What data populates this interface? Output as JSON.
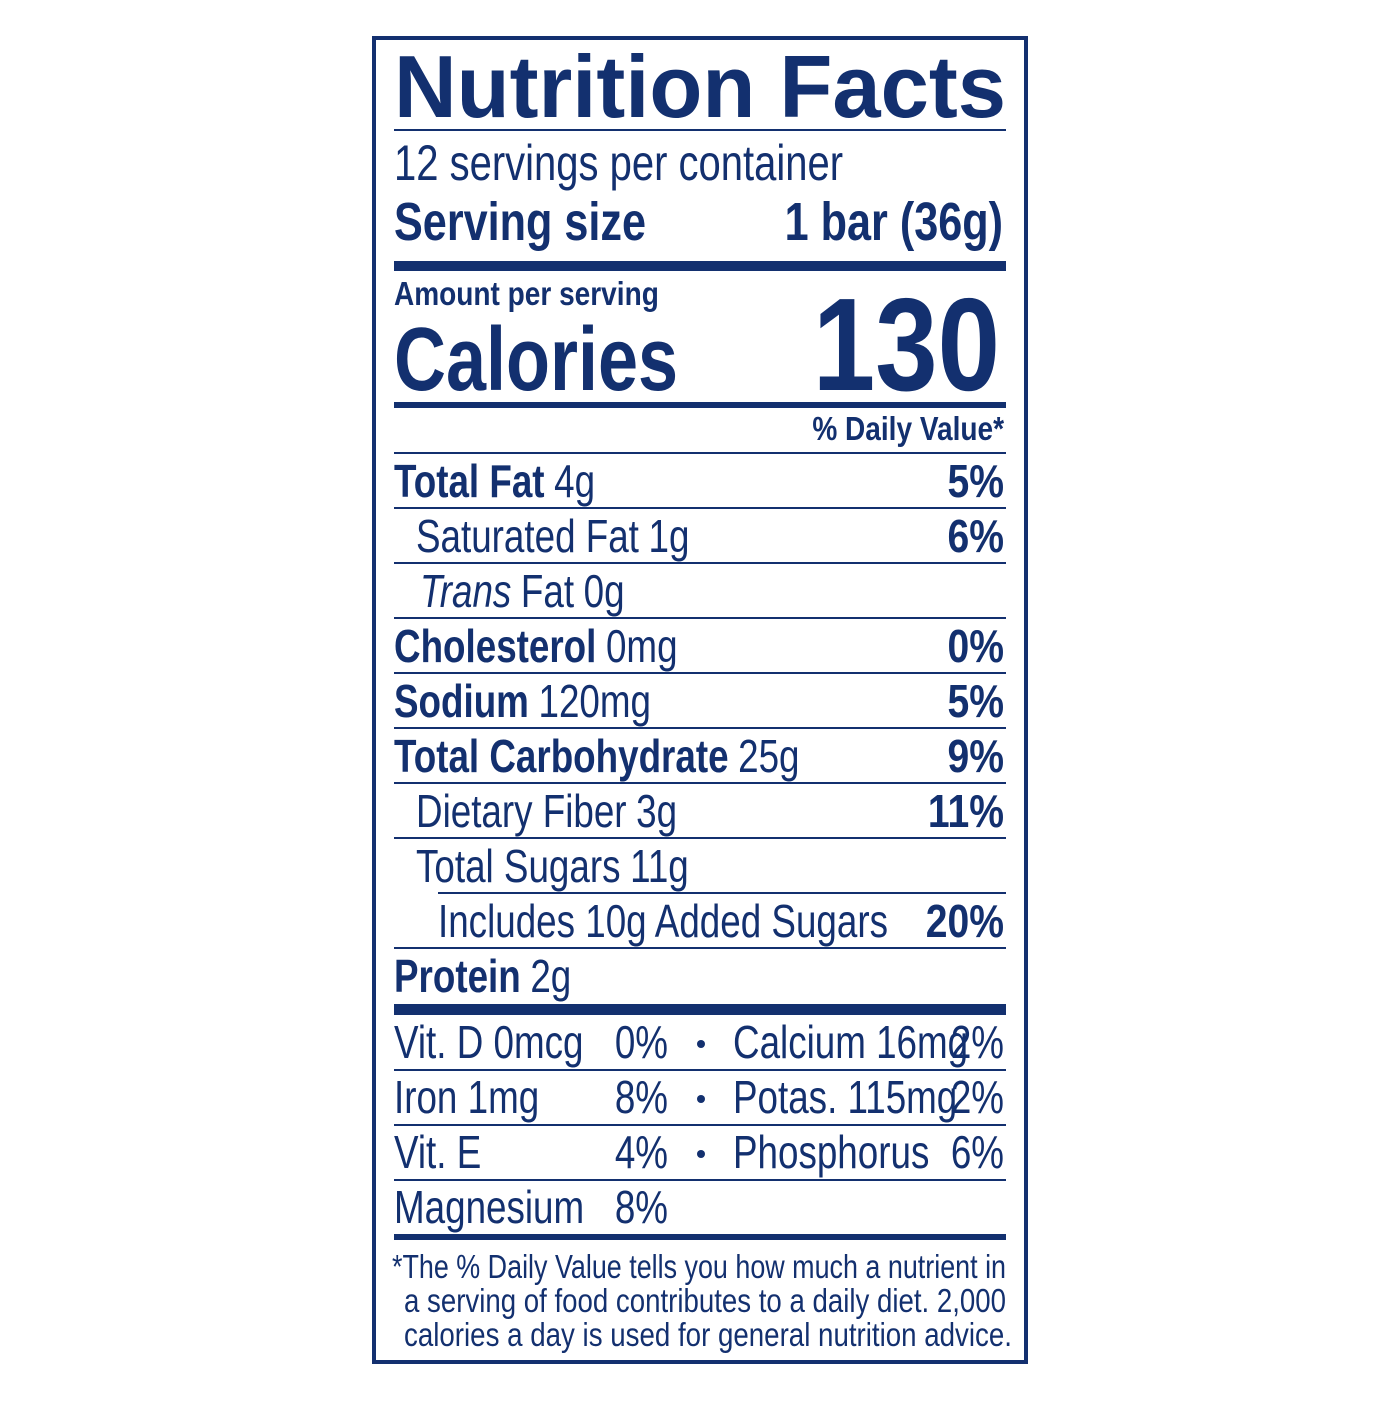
{
  "title": "Nutrition Facts",
  "servings": "12 servings per container",
  "serving_size": {
    "label": "Serving size",
    "value": "1 bar (36g)"
  },
  "amount_per_serving": "Amount per serving",
  "calories": {
    "label": "Calories",
    "value": "130"
  },
  "daily_value_header": "% Daily Value*",
  "nutrients": [
    {
      "name": "Total Fat",
      "amount": "4g",
      "dv": "5%"
    },
    {
      "name": "Saturated Fat",
      "amount": "1g",
      "dv": "6%"
    },
    {
      "name_italic": "Trans",
      "name": "Fat",
      "amount": "0g"
    },
    {
      "name": "Cholesterol",
      "amount": "0mg",
      "dv": "0%"
    },
    {
      "name": "Sodium",
      "amount": "120mg",
      "dv": "5%"
    },
    {
      "name": "Total Carbohydrate",
      "amount": "25g",
      "dv": "9%"
    },
    {
      "name": "Dietary Fiber",
      "amount": "3g",
      "dv": "11%"
    },
    {
      "name": "Total Sugars",
      "amount": "11g"
    },
    {
      "name": "Includes 10g Added Sugars",
      "dv": "20%"
    },
    {
      "name": "Protein",
      "amount": "2g"
    }
  ],
  "vitamins": [
    [
      {
        "name": "Vit. D 0mcg",
        "dv": "0%"
      },
      {
        "name": "Calcium 16mg",
        "dv": "2%"
      }
    ],
    [
      {
        "name": "Iron 1mg",
        "dv": "8%"
      },
      {
        "name": "Potas. 115mg",
        "dv": "2%"
      }
    ],
    [
      {
        "name": "Vit. E",
        "dv": "4%"
      },
      {
        "name": "Phosphorus",
        "dv": "6%"
      }
    ],
    [
      {
        "name": "Magnesium",
        "dv": "8%"
      }
    ]
  ],
  "footnote": [
    "*The % Daily Value tells you how much a nutrient in",
    "a serving of food contributes to a daily diet. 2,000",
    "calories a day is used for general nutrition advice."
  ]
}
